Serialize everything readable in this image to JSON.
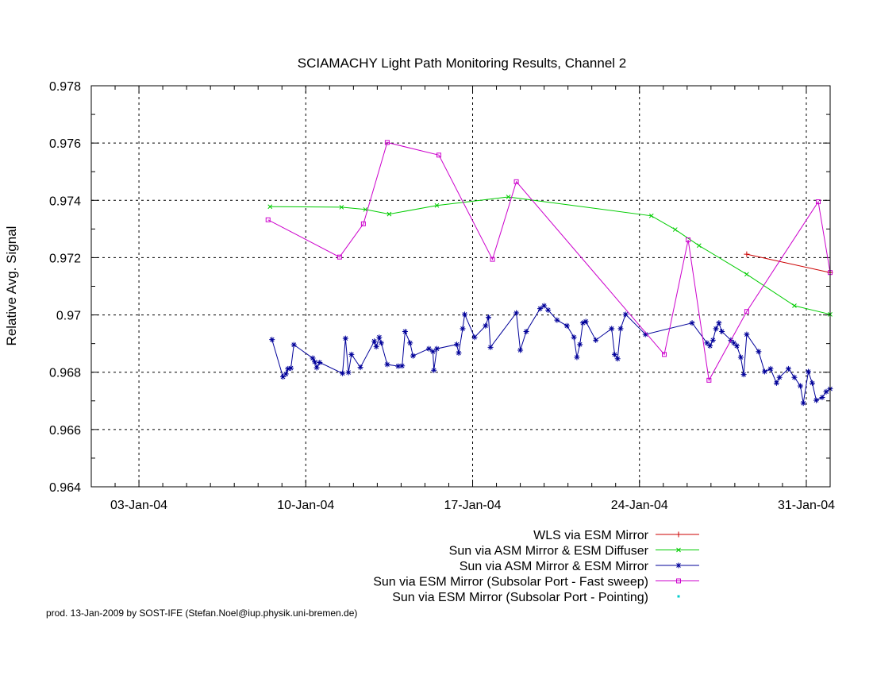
{
  "chart_data": {
    "type": "line",
    "title": "SCIAMACHY Light Path Monitoring Results, Channel 2",
    "xlabel": "",
    "ylabel": "Relative Avg. Signal",
    "xlim": [
      "2004-01-01",
      "2004-02-01"
    ],
    "ylim": [
      0.964,
      0.978
    ],
    "x_ticks": [
      {
        "date": "2004-01-03",
        "label": "03-Jan-04"
      },
      {
        "date": "2004-01-10",
        "label": "10-Jan-04"
      },
      {
        "date": "2004-01-17",
        "label": "17-Jan-04"
      },
      {
        "date": "2004-01-24",
        "label": "24-Jan-04"
      },
      {
        "date": "2004-01-31",
        "label": "31-Jan-04"
      }
    ],
    "y_ticks": [
      {
        "value": 0.964,
        "label": "0.964"
      },
      {
        "value": 0.966,
        "label": "0.966"
      },
      {
        "value": 0.968,
        "label": "0.968"
      },
      {
        "value": 0.97,
        "label": "0.97"
      },
      {
        "value": 0.972,
        "label": "0.972"
      },
      {
        "value": 0.974,
        "label": "0.974"
      },
      {
        "value": 0.976,
        "label": "0.976"
      },
      {
        "value": 0.978,
        "label": "0.978"
      }
    ],
    "grid": true,
    "legend_position": "bottom-right",
    "series": [
      {
        "name": "WLS via ESM Mirror",
        "color": "#cc0000",
        "marker": "plus",
        "points": [
          [
            "2004-01-28 12:00",
            0.97212
          ],
          [
            "2004-02-01 00:00",
            0.97148
          ]
        ]
      },
      {
        "name": "Sun via ASM Mirror & ESM Diffuser",
        "color": "#00cc00",
        "marker": "cross",
        "points": [
          [
            "2004-01-08 12:00",
            0.97378
          ],
          [
            "2004-01-11 12:00",
            0.97376
          ],
          [
            "2004-01-12 12:00",
            0.97368
          ],
          [
            "2004-01-13 12:00",
            0.97352
          ],
          [
            "2004-01-15 12:00",
            0.97382
          ],
          [
            "2004-01-18 12:00",
            0.97412
          ],
          [
            "2004-01-24 12:00",
            0.97346
          ],
          [
            "2004-01-25 12:00",
            0.97298
          ],
          [
            "2004-01-26 12:00",
            0.97242
          ],
          [
            "2004-01-28 12:00",
            0.97142
          ],
          [
            "2004-01-30 12:00",
            0.97032
          ],
          [
            "2004-02-01 00:00",
            0.97002
          ]
        ]
      },
      {
        "name": "Sun via ASM Mirror & ESM Mirror",
        "color": "#000099",
        "marker": "star",
        "points": [
          [
            "2004-01-08 14:00",
            0.96914
          ],
          [
            "2004-01-09 01:00",
            0.96784
          ],
          [
            "2004-01-09 04:00",
            0.96794
          ],
          [
            "2004-01-09 06:00",
            0.96812
          ],
          [
            "2004-01-09 09:00",
            0.96814
          ],
          [
            "2004-01-09 12:00",
            0.96896
          ],
          [
            "2004-01-10 07:00",
            0.96849
          ],
          [
            "2004-01-10 09:00",
            0.96836
          ],
          [
            "2004-01-10 11:00",
            0.96816
          ],
          [
            "2004-01-10 14:00",
            0.96834
          ],
          [
            "2004-01-11 13:00",
            0.96796
          ],
          [
            "2004-01-11 16:00",
            0.96918
          ],
          [
            "2004-01-11 19:00",
            0.96799
          ],
          [
            "2004-01-11 22:00",
            0.96862
          ],
          [
            "2004-01-12 07:00",
            0.96817
          ],
          [
            "2004-01-12 21:00",
            0.96908
          ],
          [
            "2004-01-12 23:00",
            0.96889
          ],
          [
            "2004-01-13 02:00",
            0.96922
          ],
          [
            "2004-01-13 04:00",
            0.96902
          ],
          [
            "2004-01-13 10:00",
            0.96827
          ],
          [
            "2004-01-13 21:00",
            0.96821
          ],
          [
            "2004-01-14 01:00",
            0.96822
          ],
          [
            "2004-01-14 04:00",
            0.96942
          ],
          [
            "2004-01-14 09:00",
            0.96902
          ],
          [
            "2004-01-14 12:00",
            0.96857
          ],
          [
            "2004-01-15 04:00",
            0.96882
          ],
          [
            "2004-01-15 08:00",
            0.96872
          ],
          [
            "2004-01-15 09:00",
            0.96807
          ],
          [
            "2004-01-15 12:00",
            0.96882
          ],
          [
            "2004-01-16 08:00",
            0.96897
          ],
          [
            "2004-01-16 10:00",
            0.96867
          ],
          [
            "2004-01-16 14:00",
            0.96952
          ],
          [
            "2004-01-16 16:00",
            0.97002
          ],
          [
            "2004-01-17 02:00",
            0.96922
          ],
          [
            "2004-01-17 13:00",
            0.96962
          ],
          [
            "2004-01-17 16:00",
            0.96992
          ],
          [
            "2004-01-17 18:00",
            0.96887
          ],
          [
            "2004-01-18 20:00",
            0.97007
          ],
          [
            "2004-01-19 00:00",
            0.96877
          ],
          [
            "2004-01-19 06:00",
            0.96942
          ],
          [
            "2004-01-19 20:00",
            0.97022
          ],
          [
            "2004-01-20 00:00",
            0.97032
          ],
          [
            "2004-01-20 04:00",
            0.97017
          ],
          [
            "2004-01-20 13:00",
            0.96982
          ],
          [
            "2004-01-20 23:00",
            0.96962
          ],
          [
            "2004-01-21 06:00",
            0.96922
          ],
          [
            "2004-01-21 09:00",
            0.96852
          ],
          [
            "2004-01-21 12:00",
            0.96897
          ],
          [
            "2004-01-21 15:00",
            0.96972
          ],
          [
            "2004-01-21 18:00",
            0.96977
          ],
          [
            "2004-01-22 04:00",
            0.96912
          ],
          [
            "2004-01-22 20:00",
            0.96952
          ],
          [
            "2004-01-22 23:00",
            0.96862
          ],
          [
            "2004-01-23 02:00",
            0.96847
          ],
          [
            "2004-01-23 05:00",
            0.96952
          ],
          [
            "2004-01-23 10:00",
            0.97002
          ],
          [
            "2004-01-24 06:00",
            0.96932
          ],
          [
            "2004-01-26 05:00",
            0.96972
          ],
          [
            "2004-01-26 20:00",
            0.96902
          ],
          [
            "2004-01-26 23:00",
            0.96892
          ],
          [
            "2004-01-27 02:00",
            0.96912
          ],
          [
            "2004-01-27 05:00",
            0.96952
          ],
          [
            "2004-01-27 08:00",
            0.96972
          ],
          [
            "2004-01-27 11:00",
            0.96942
          ],
          [
            "2004-01-27 20:00",
            0.96912
          ],
          [
            "2004-01-27 23:00",
            0.96902
          ],
          [
            "2004-01-28 02:00",
            0.96892
          ],
          [
            "2004-01-28 06:00",
            0.96852
          ],
          [
            "2004-01-28 09:00",
            0.96792
          ],
          [
            "2004-01-28 12:00",
            0.96932
          ],
          [
            "2004-01-29 00:00",
            0.96872
          ],
          [
            "2004-01-29 06:00",
            0.96802
          ],
          [
            "2004-01-29 12:00",
            0.96812
          ],
          [
            "2004-01-29 18:00",
            0.96762
          ],
          [
            "2004-01-29 21:00",
            0.96782
          ],
          [
            "2004-01-30 06:00",
            0.96812
          ],
          [
            "2004-01-30 12:00",
            0.96782
          ],
          [
            "2004-01-30 18:00",
            0.96752
          ],
          [
            "2004-01-30 21:00",
            0.96692
          ],
          [
            "2004-01-31 02:00",
            0.96802
          ],
          [
            "2004-01-31 06:00",
            0.96762
          ],
          [
            "2004-01-31 10:00",
            0.96702
          ],
          [
            "2004-01-31 16:00",
            0.96712
          ],
          [
            "2004-01-31 20:00",
            0.96732
          ],
          [
            "2004-02-01 00:00",
            0.96742
          ]
        ]
      },
      {
        "name": "Sun via ESM Mirror (Subsolar Port - Fast sweep)",
        "color": "#cc00cc",
        "marker": "square",
        "points": [
          [
            "2004-01-08 10:00",
            0.97332
          ],
          [
            "2004-01-11 10:00",
            0.97202
          ],
          [
            "2004-01-12 10:00",
            0.97318
          ],
          [
            "2004-01-13 10:00",
            0.97602
          ],
          [
            "2004-01-15 14:00",
            0.97558
          ],
          [
            "2004-01-17 20:00",
            0.97194
          ],
          [
            "2004-01-18 20:00",
            0.97465
          ],
          [
            "2004-01-25 01:00",
            0.96862
          ],
          [
            "2004-01-26 01:00",
            0.97262
          ],
          [
            "2004-01-26 22:00",
            0.96772
          ],
          [
            "2004-01-28 12:00",
            0.97012
          ],
          [
            "2004-01-31 12:00",
            0.97395
          ],
          [
            "2004-02-01 00:00",
            0.97148
          ]
        ]
      },
      {
        "name": "Sun via ESM Mirror (Subsolar Port - Pointing)",
        "color": "#00cccc",
        "marker": "dot",
        "points": []
      }
    ]
  },
  "footer_note": "prod. 13-Jan-2009 by SOST-IFE (Stefan.Noel@iup.physik.uni-bremen.de)"
}
